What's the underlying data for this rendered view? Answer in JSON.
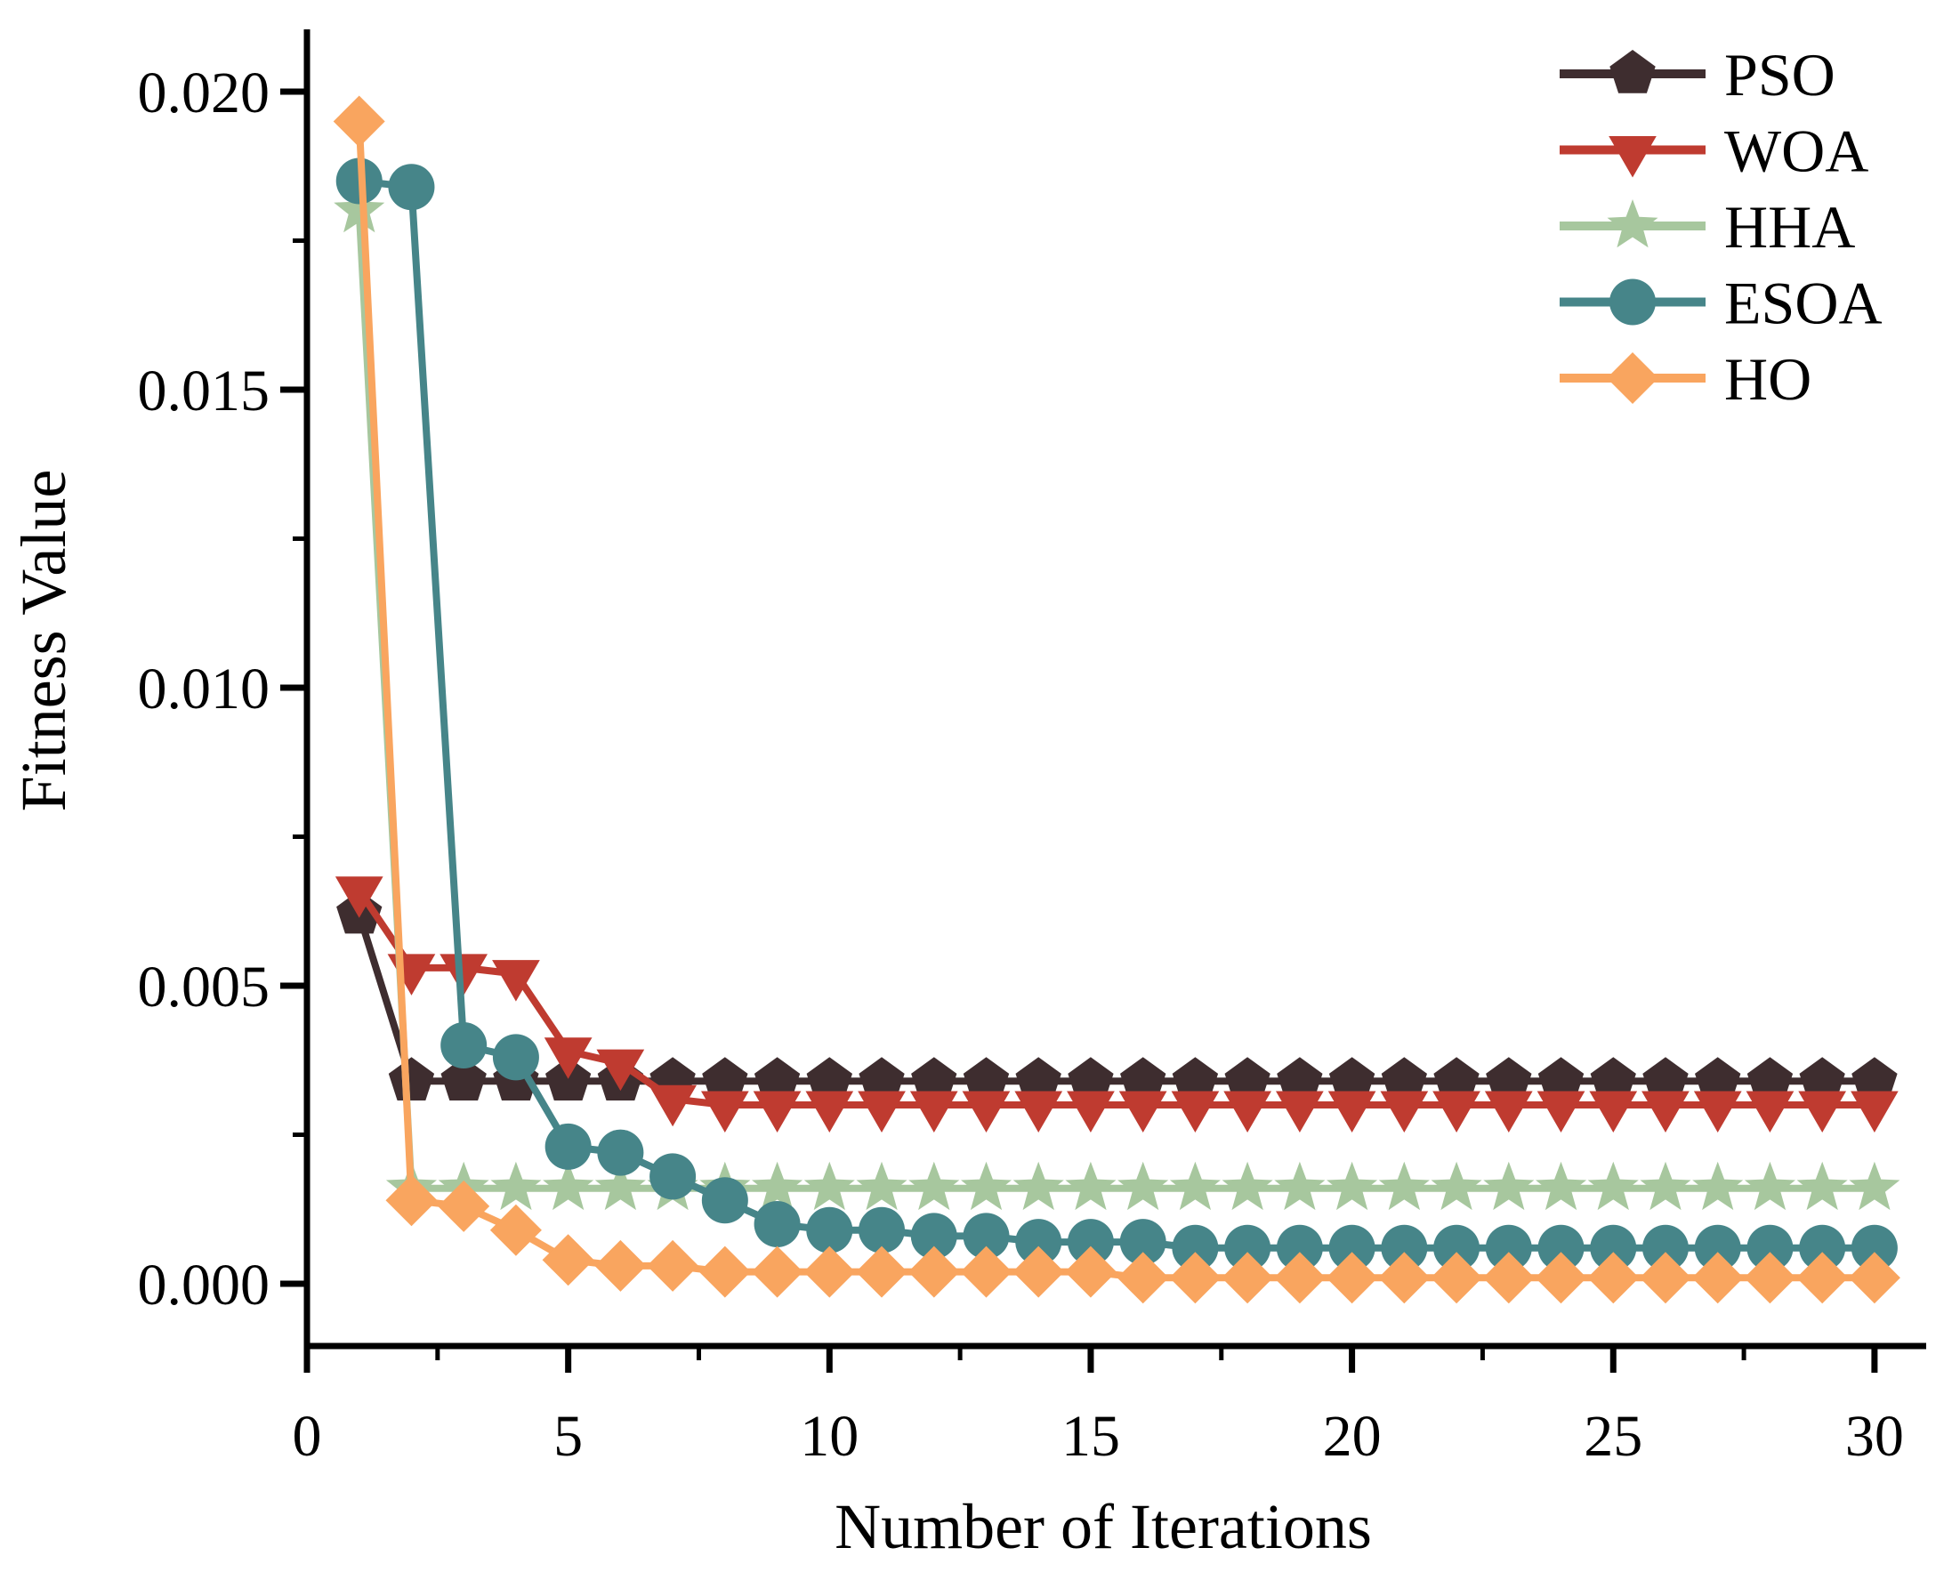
{
  "figure": {
    "background": "#ffffff",
    "axis_color": "#000000",
    "text_color": "#000000"
  },
  "chart_data": {
    "type": "line",
    "title": "",
    "xlabel": "Number of Iterations",
    "ylabel": "Fitness Value",
    "xlim": [
      0,
      31
    ],
    "ylim": [
      -0.001,
      0.021
    ],
    "grid": false,
    "legend_position": "top-right",
    "xticks_major": [
      0,
      5,
      10,
      15,
      20,
      25,
      30
    ],
    "xticks_minor": [
      2.5,
      7.5,
      12.5,
      17.5,
      22.5,
      27.5
    ],
    "ytick_values": [
      0.0,
      0.005,
      0.01,
      0.015,
      0.02
    ],
    "ytick_labels": [
      "0.000",
      "0.005",
      "0.010",
      "0.015",
      "0.020"
    ],
    "yticks_minor": [
      0.0025,
      0.0075,
      0.0125,
      0.0175
    ],
    "x": [
      1,
      2,
      3,
      4,
      5,
      6,
      7,
      8,
      9,
      10,
      11,
      12,
      13,
      14,
      15,
      16,
      17,
      18,
      19,
      20,
      21,
      22,
      23,
      24,
      25,
      26,
      27,
      28,
      29,
      30
    ],
    "series": [
      {
        "name": "PSO",
        "marker": "pentagon",
        "color": "#3E2D2F",
        "values": [
          0.0062,
          0.0034,
          0.0034,
          0.0034,
          0.0034,
          0.0034,
          0.0034,
          0.0034,
          0.0034,
          0.0034,
          0.0034,
          0.0034,
          0.0034,
          0.0034,
          0.0034,
          0.0034,
          0.0034,
          0.0034,
          0.0034,
          0.0034,
          0.0034,
          0.0034,
          0.0034,
          0.0034,
          0.0034,
          0.0034,
          0.0034,
          0.0034,
          0.0034,
          0.0034
        ]
      },
      {
        "name": "WOA",
        "marker": "triangle-down",
        "color": "#BF3B30",
        "values": [
          0.0066,
          0.0053,
          0.0053,
          0.0052,
          0.0039,
          0.0037,
          0.0031,
          0.003,
          0.003,
          0.003,
          0.003,
          0.003,
          0.003,
          0.003,
          0.003,
          0.003,
          0.003,
          0.003,
          0.003,
          0.003,
          0.003,
          0.003,
          0.003,
          0.003,
          0.003,
          0.003,
          0.003,
          0.003,
          0.003,
          0.003
        ]
      },
      {
        "name": "HHA",
        "marker": "star",
        "color": "#A7C79E",
        "values": [
          0.018,
          0.0016,
          0.0016,
          0.0016,
          0.0016,
          0.0016,
          0.0016,
          0.0016,
          0.0016,
          0.0016,
          0.0016,
          0.0016,
          0.0016,
          0.0016,
          0.0016,
          0.0016,
          0.0016,
          0.0016,
          0.0016,
          0.0016,
          0.0016,
          0.0016,
          0.0016,
          0.0016,
          0.0016,
          0.0016,
          0.0016,
          0.0016,
          0.0016,
          0.0016
        ]
      },
      {
        "name": "ESOA",
        "marker": "circle",
        "color": "#468589",
        "values": [
          0.0185,
          0.0184,
          0.004,
          0.0038,
          0.0023,
          0.0022,
          0.0018,
          0.0014,
          0.001,
          0.0009,
          0.0009,
          0.0008,
          0.0008,
          0.0007,
          0.0007,
          0.0007,
          0.0006,
          0.0006,
          0.0006,
          0.0006,
          0.0006,
          0.0006,
          0.0006,
          0.0006,
          0.0006,
          0.0006,
          0.0006,
          0.0006,
          0.0006,
          0.0006
        ]
      },
      {
        "name": "HO",
        "marker": "diamond",
        "color": "#F9A55F",
        "values": [
          0.0195,
          0.0014,
          0.0013,
          0.0009,
          0.0004,
          0.0003,
          0.0003,
          0.0002,
          0.0002,
          0.0002,
          0.0002,
          0.0002,
          0.0002,
          0.0002,
          0.0002,
          0.0001,
          0.0001,
          0.0001,
          0.0001,
          0.0001,
          0.0001,
          0.0001,
          0.0001,
          0.0001,
          0.0001,
          0.0001,
          0.0001,
          0.0001,
          0.0001,
          0.0001
        ]
      }
    ],
    "legend": [
      "PSO",
      "WOA",
      "HHA",
      "ESOA",
      "HO"
    ]
  }
}
